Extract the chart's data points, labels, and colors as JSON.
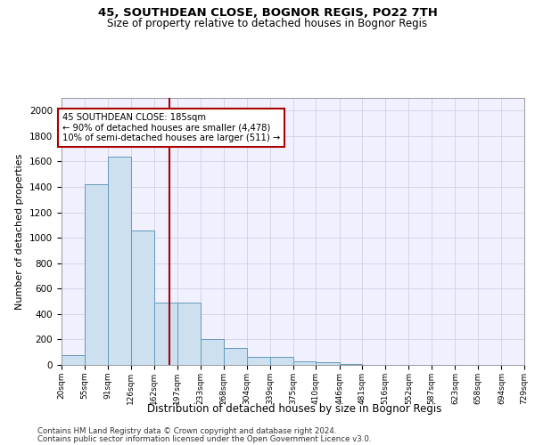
{
  "title": "45, SOUTHDEAN CLOSE, BOGNOR REGIS, PO22 7TH",
  "subtitle": "Size of property relative to detached houses in Bognor Regis",
  "xlabel": "Distribution of detached houses by size in Bognor Regis",
  "ylabel": "Number of detached properties",
  "footnote1": "Contains HM Land Registry data © Crown copyright and database right 2024.",
  "footnote2": "Contains public sector information licensed under the Open Government Licence v3.0.",
  "annotation_line1": "45 SOUTHDEAN CLOSE: 185sqm",
  "annotation_line2": "← 90% of detached houses are smaller (4,478)",
  "annotation_line3": "10% of semi-detached houses are larger (511) →",
  "bar_color": "#cce0f0",
  "bar_edge_color": "#6699bb",
  "vline_color": "#aa0000",
  "vline_x": 185,
  "bins": [
    20,
    55,
    91,
    126,
    162,
    197,
    233,
    268,
    304,
    339,
    375,
    410,
    446,
    481,
    516,
    552,
    587,
    623,
    658,
    694,
    729
  ],
  "counts": [
    80,
    1420,
    1640,
    1060,
    490,
    490,
    200,
    130,
    60,
    60,
    30,
    20,
    5,
    3,
    3,
    2,
    2,
    1,
    1,
    1
  ],
  "ylim": [
    0,
    2100
  ],
  "yticks": [
    0,
    200,
    400,
    600,
    800,
    1000,
    1200,
    1400,
    1600,
    1800,
    2000
  ],
  "grid_color": "#d0d0e0",
  "background_color": "#f0f0ff"
}
